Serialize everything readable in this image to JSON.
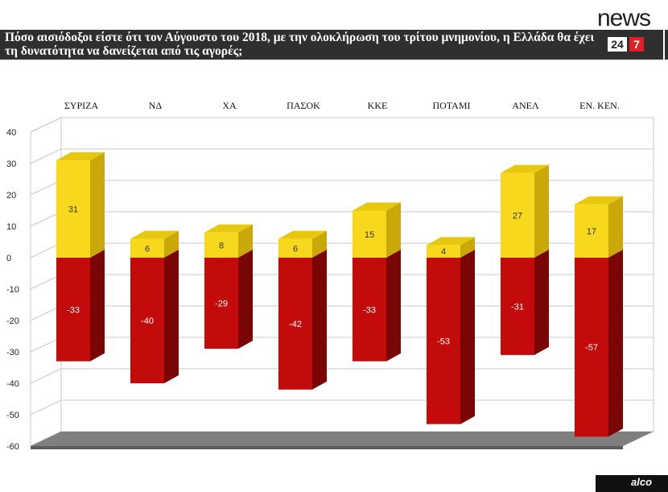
{
  "header": {
    "question": "Πόσο αισιόδοξοι είστε ότι τον Αύγουστο του 2018, με την ολοκλήρωση του τρίτου μνημονίου, η Ελλάδα θα έχει τη δυνατότητα να δανείζεται από τις αγορές;"
  },
  "logo": {
    "word": "news",
    "num": "24",
    "num2": "7"
  },
  "footer": {
    "brand": "alco"
  },
  "colors": {
    "positive": "#f7d81c",
    "positive_side": "#c9a90a",
    "negative": "#c40b0b",
    "negative_side": "#7a0505"
  },
  "chart_data": {
    "type": "bar",
    "title": "",
    "xlabel": "",
    "ylabel": "",
    "ylim": [
      -60,
      40
    ],
    "yticks": [
      40,
      30,
      20,
      10,
      0,
      -10,
      -20,
      -30,
      -40,
      -50,
      -60
    ],
    "categories": [
      "ΣΥΡΙΖΑ",
      "ΝΔ",
      "ΧΑ",
      "ΠΑΣΟΚ",
      "ΚΚΕ",
      "ΠΟΤΑΜΙ",
      "ΑΝΕΛ",
      "ΕΝ. ΚΕΝ."
    ],
    "series": [
      {
        "values": [
          31,
          6,
          8,
          6,
          15,
          4,
          27,
          17
        ]
      },
      {
        "values": [
          -33,
          -40,
          -29,
          -42,
          -33,
          -53,
          -31,
          -57
        ]
      }
    ],
    "legend": "none",
    "grid": true
  }
}
